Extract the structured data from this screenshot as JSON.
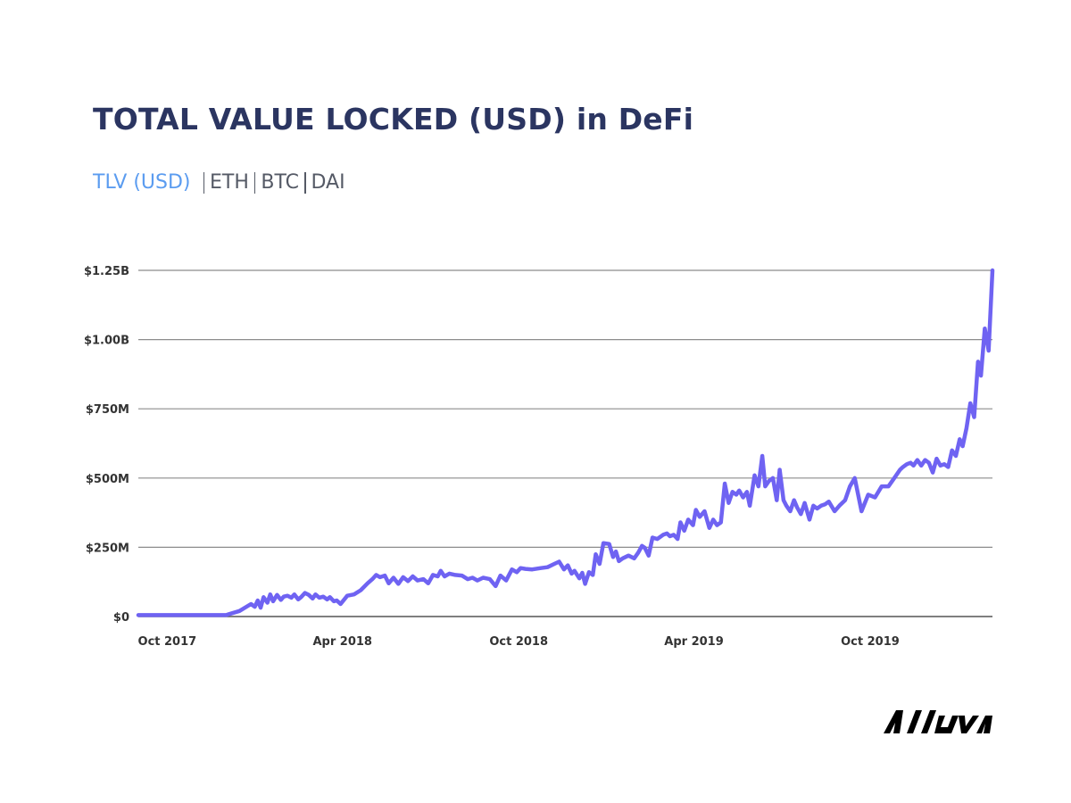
{
  "title": "TOTAL VALUE LOCKED (USD) in DeFi",
  "tabs": [
    {
      "label": "TLV (USD)",
      "active": true
    },
    {
      "label": "ETH",
      "active": false
    },
    {
      "label": "BTC",
      "active": false
    },
    {
      "label": "DAI",
      "active": false
    }
  ],
  "brand": "Alluva",
  "colors": {
    "title": "#2b3561",
    "active_tab": "#5b9cf0",
    "series": "#6f63f2",
    "grid": "#8c8c8c",
    "text": "#333333"
  },
  "chart_data": {
    "type": "line",
    "title": "TOTAL VALUE LOCKED (USD) in DeFi",
    "xlabel": "",
    "ylabel": "",
    "ylim": [
      0,
      1250000000
    ],
    "xlim": [
      "2017-09-01",
      "2020-02-05"
    ],
    "grid": true,
    "y_ticks": [
      {
        "value": 0,
        "label": "$0"
      },
      {
        "value": 250000000,
        "label": "$250M"
      },
      {
        "value": 500000000,
        "label": "$500M"
      },
      {
        "value": 750000000,
        "label": "$750M"
      },
      {
        "value": 1000000000,
        "label": "$1.00B"
      },
      {
        "value": 1250000000,
        "label": "$1.25B"
      }
    ],
    "x_ticks": [
      {
        "date": "2017-10-01",
        "label": "Oct 2017"
      },
      {
        "date": "2018-04-01",
        "label": "Apr 2018"
      },
      {
        "date": "2018-10-01",
        "label": "Oct 2018"
      },
      {
        "date": "2019-04-01",
        "label": "Apr 2019"
      },
      {
        "date": "2019-10-01",
        "label": "Oct 2019"
      }
    ],
    "x": [
      "2017-09-01",
      "2017-12-01",
      "2017-12-15",
      "2017-12-27",
      "2017-12-31",
      "2018-01-03",
      "2018-01-06",
      "2018-01-09",
      "2018-01-13",
      "2018-01-16",
      "2018-01-19",
      "2018-01-23",
      "2018-01-27",
      "2018-01-30",
      "2018-02-03",
      "2018-02-07",
      "2018-02-10",
      "2018-02-14",
      "2018-02-17",
      "2018-02-21",
      "2018-02-25",
      "2018-03-01",
      "2018-03-04",
      "2018-03-08",
      "2018-03-12",
      "2018-03-16",
      "2018-03-19",
      "2018-03-23",
      "2018-03-26",
      "2018-03-30",
      "2018-04-06",
      "2018-04-13",
      "2018-04-20",
      "2018-04-27",
      "2018-05-02",
      "2018-05-06",
      "2018-05-10",
      "2018-05-15",
      "2018-05-19",
      "2018-05-24",
      "2018-05-29",
      "2018-06-03",
      "2018-06-08",
      "2018-06-13",
      "2018-06-18",
      "2018-06-24",
      "2018-06-29",
      "2018-07-04",
      "2018-07-09",
      "2018-07-12",
      "2018-07-16",
      "2018-07-21",
      "2018-07-27",
      "2018-08-03",
      "2018-08-09",
      "2018-08-14",
      "2018-08-19",
      "2018-08-25",
      "2018-09-01",
      "2018-09-07",
      "2018-09-12",
      "2018-09-18",
      "2018-09-24",
      "2018-09-29",
      "2018-10-03",
      "2018-10-08",
      "2018-10-15",
      "2018-10-24",
      "2018-10-31",
      "2018-11-07",
      "2018-11-12",
      "2018-11-17",
      "2018-11-21",
      "2018-11-25",
      "2018-11-28",
      "2018-12-03",
      "2018-12-06",
      "2018-12-09",
      "2018-12-13",
      "2018-12-17",
      "2018-12-20",
      "2018-12-24",
      "2018-12-28",
      "2019-01-03",
      "2019-01-07",
      "2019-01-10",
      "2019-01-13",
      "2019-01-17",
      "2019-01-23",
      "2019-01-29",
      "2019-02-02",
      "2019-02-06",
      "2019-02-09",
      "2019-02-13",
      "2019-02-17",
      "2019-02-22",
      "2019-02-28",
      "2019-03-04",
      "2019-03-07",
      "2019-03-11",
      "2019-03-15",
      "2019-03-18",
      "2019-03-22",
      "2019-03-26",
      "2019-03-31",
      "2019-04-03",
      "2019-04-07",
      "2019-04-12",
      "2019-04-17",
      "2019-04-21",
      "2019-04-25",
      "2019-04-29",
      "2019-05-03",
      "2019-05-07",
      "2019-05-11",
      "2019-05-15",
      "2019-05-18",
      "2019-05-22",
      "2019-05-26",
      "2019-05-29",
      "2019-06-03",
      "2019-06-07",
      "2019-06-11",
      "2019-06-14",
      "2019-06-18",
      "2019-06-22",
      "2019-06-26",
      "2019-06-29",
      "2019-07-03",
      "2019-07-06",
      "2019-07-10",
      "2019-07-14",
      "2019-07-17",
      "2019-07-21",
      "2019-07-25",
      "2019-07-30",
      "2019-08-03",
      "2019-08-07",
      "2019-08-11",
      "2019-08-15",
      "2019-08-19",
      "2019-08-25",
      "2019-08-30",
      "2019-09-05",
      "2019-09-10",
      "2019-09-15",
      "2019-09-22",
      "2019-09-29",
      "2019-10-06",
      "2019-10-13",
      "2019-10-20",
      "2019-10-26",
      "2019-11-01",
      "2019-11-04",
      "2019-11-08",
      "2019-11-12",
      "2019-11-15",
      "2019-11-19",
      "2019-11-23",
      "2019-11-27",
      "2019-12-01",
      "2019-12-05",
      "2019-12-09",
      "2019-12-13",
      "2019-12-17",
      "2019-12-21",
      "2019-12-25",
      "2019-12-29",
      "2020-01-02",
      "2020-01-05",
      "2020-01-09",
      "2020-01-13",
      "2020-01-17",
      "2020-01-21",
      "2020-01-24",
      "2020-01-28",
      "2020-02-01",
      "2020-02-05"
    ],
    "series": [
      {
        "values": [
          5000000,
          5000000,
          20000000,
          45000000,
          35000000,
          58000000,
          32000000,
          70000000,
          50000000,
          80000000,
          55000000,
          78000000,
          60000000,
          72000000,
          75000000,
          68000000,
          80000000,
          62000000,
          70000000,
          85000000,
          78000000,
          65000000,
          80000000,
          68000000,
          72000000,
          62000000,
          70000000,
          55000000,
          58000000,
          45000000,
          75000000,
          80000000,
          95000000,
          120000000,
          135000000,
          150000000,
          142000000,
          148000000,
          120000000,
          140000000,
          118000000,
          142000000,
          128000000,
          145000000,
          130000000,
          135000000,
          120000000,
          150000000,
          145000000,
          165000000,
          145000000,
          155000000,
          150000000,
          148000000,
          135000000,
          140000000,
          130000000,
          140000000,
          135000000,
          110000000,
          148000000,
          130000000,
          170000000,
          160000000,
          175000000,
          172000000,
          170000000,
          175000000,
          178000000,
          190000000,
          198000000,
          170000000,
          185000000,
          155000000,
          165000000,
          138000000,
          158000000,
          118000000,
          160000000,
          150000000,
          225000000,
          190000000,
          265000000,
          262000000,
          215000000,
          235000000,
          200000000,
          210000000,
          220000000,
          210000000,
          230000000,
          255000000,
          248000000,
          220000000,
          285000000,
          280000000,
          295000000,
          300000000,
          290000000,
          295000000,
          280000000,
          340000000,
          310000000,
          350000000,
          330000000,
          385000000,
          360000000,
          380000000,
          320000000,
          350000000,
          330000000,
          340000000,
          480000000,
          410000000,
          450000000,
          440000000,
          455000000,
          430000000,
          450000000,
          400000000,
          510000000,
          470000000,
          580000000,
          470000000,
          490000000,
          500000000,
          420000000,
          530000000,
          420000000,
          400000000,
          380000000,
          420000000,
          395000000,
          370000000,
          410000000,
          350000000,
          400000000,
          390000000,
          400000000,
          405000000,
          415000000,
          380000000,
          400000000,
          420000000,
          470000000,
          500000000,
          380000000,
          440000000,
          430000000,
          470000000,
          470000000,
          500000000,
          530000000,
          540000000,
          550000000,
          555000000,
          545000000,
          565000000,
          545000000,
          565000000,
          555000000,
          520000000,
          570000000,
          545000000,
          550000000,
          540000000,
          600000000,
          580000000,
          640000000,
          615000000,
          680000000,
          770000000,
          720000000,
          920000000,
          870000000,
          1040000000,
          960000000,
          1250000000
        ]
      }
    ]
  }
}
